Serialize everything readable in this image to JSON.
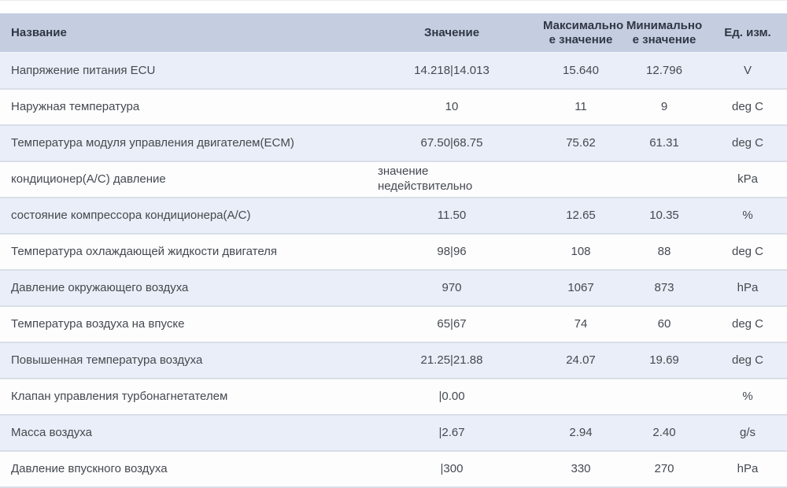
{
  "table": {
    "columns": [
      {
        "key": "name",
        "label": "Название"
      },
      {
        "key": "value",
        "label": "Значение"
      },
      {
        "key": "max",
        "label": "Максимально\nе значение"
      },
      {
        "key": "min",
        "label": "Минимально\nе значение"
      },
      {
        "key": "unit",
        "label": "Ед. изм."
      }
    ],
    "rows": [
      {
        "name": "Напряжение питания ECU",
        "value": "14.218|14.013",
        "max": "15.640",
        "min": "12.796",
        "unit": "V"
      },
      {
        "name": "Наружная температура",
        "value": "10",
        "max": "11",
        "min": "9",
        "unit": "deg C"
      },
      {
        "name": "Температура модуля управления двигателем(ECM)",
        "value": "67.50|68.75",
        "max": "75.62",
        "min": "61.31",
        "unit": "deg C"
      },
      {
        "name": "кондиционер(A/C) давление",
        "value": "значение недействительно",
        "max": "",
        "min": "",
        "unit": "kPa",
        "value_invalid": true
      },
      {
        "name": "состояние компрессора кондиционера(A/C)",
        "value": "11.50",
        "max": "12.65",
        "min": "10.35",
        "unit": "%"
      },
      {
        "name": "Температура охлаждающей жидкости двигателя",
        "value": "98|96",
        "max": "108",
        "min": "88",
        "unit": "deg C"
      },
      {
        "name": "Давление окружающего воздуха",
        "value": "970",
        "max": "1067",
        "min": "873",
        "unit": "hPa"
      },
      {
        "name": "Температура воздуха на впуске",
        "value": "65|67",
        "max": "74",
        "min": "60",
        "unit": "deg C"
      },
      {
        "name": "Повышенная температура воздуха",
        "value": "21.25|21.88",
        "max": "24.07",
        "min": "19.69",
        "unit": "deg C"
      },
      {
        "name": "Клапан управления турбонагнетателем",
        "value": "|0.00",
        "max": "",
        "min": "",
        "unit": "%"
      },
      {
        "name": "Масса воздуха",
        "value": "|2.67",
        "max": "2.94",
        "min": "2.40",
        "unit": "g/s"
      },
      {
        "name": "Давление впускного воздуха",
        "value": "|300",
        "max": "330",
        "min": "270",
        "unit": "hPa"
      }
    ]
  },
  "colors": {
    "header_bg": "#c5cde1",
    "header_text": "#2f3743",
    "row_alt_bg": "#e9eef8",
    "row_bg": "#fdfdfe",
    "separator": "#d9dee8",
    "body_text": "#45494f"
  }
}
